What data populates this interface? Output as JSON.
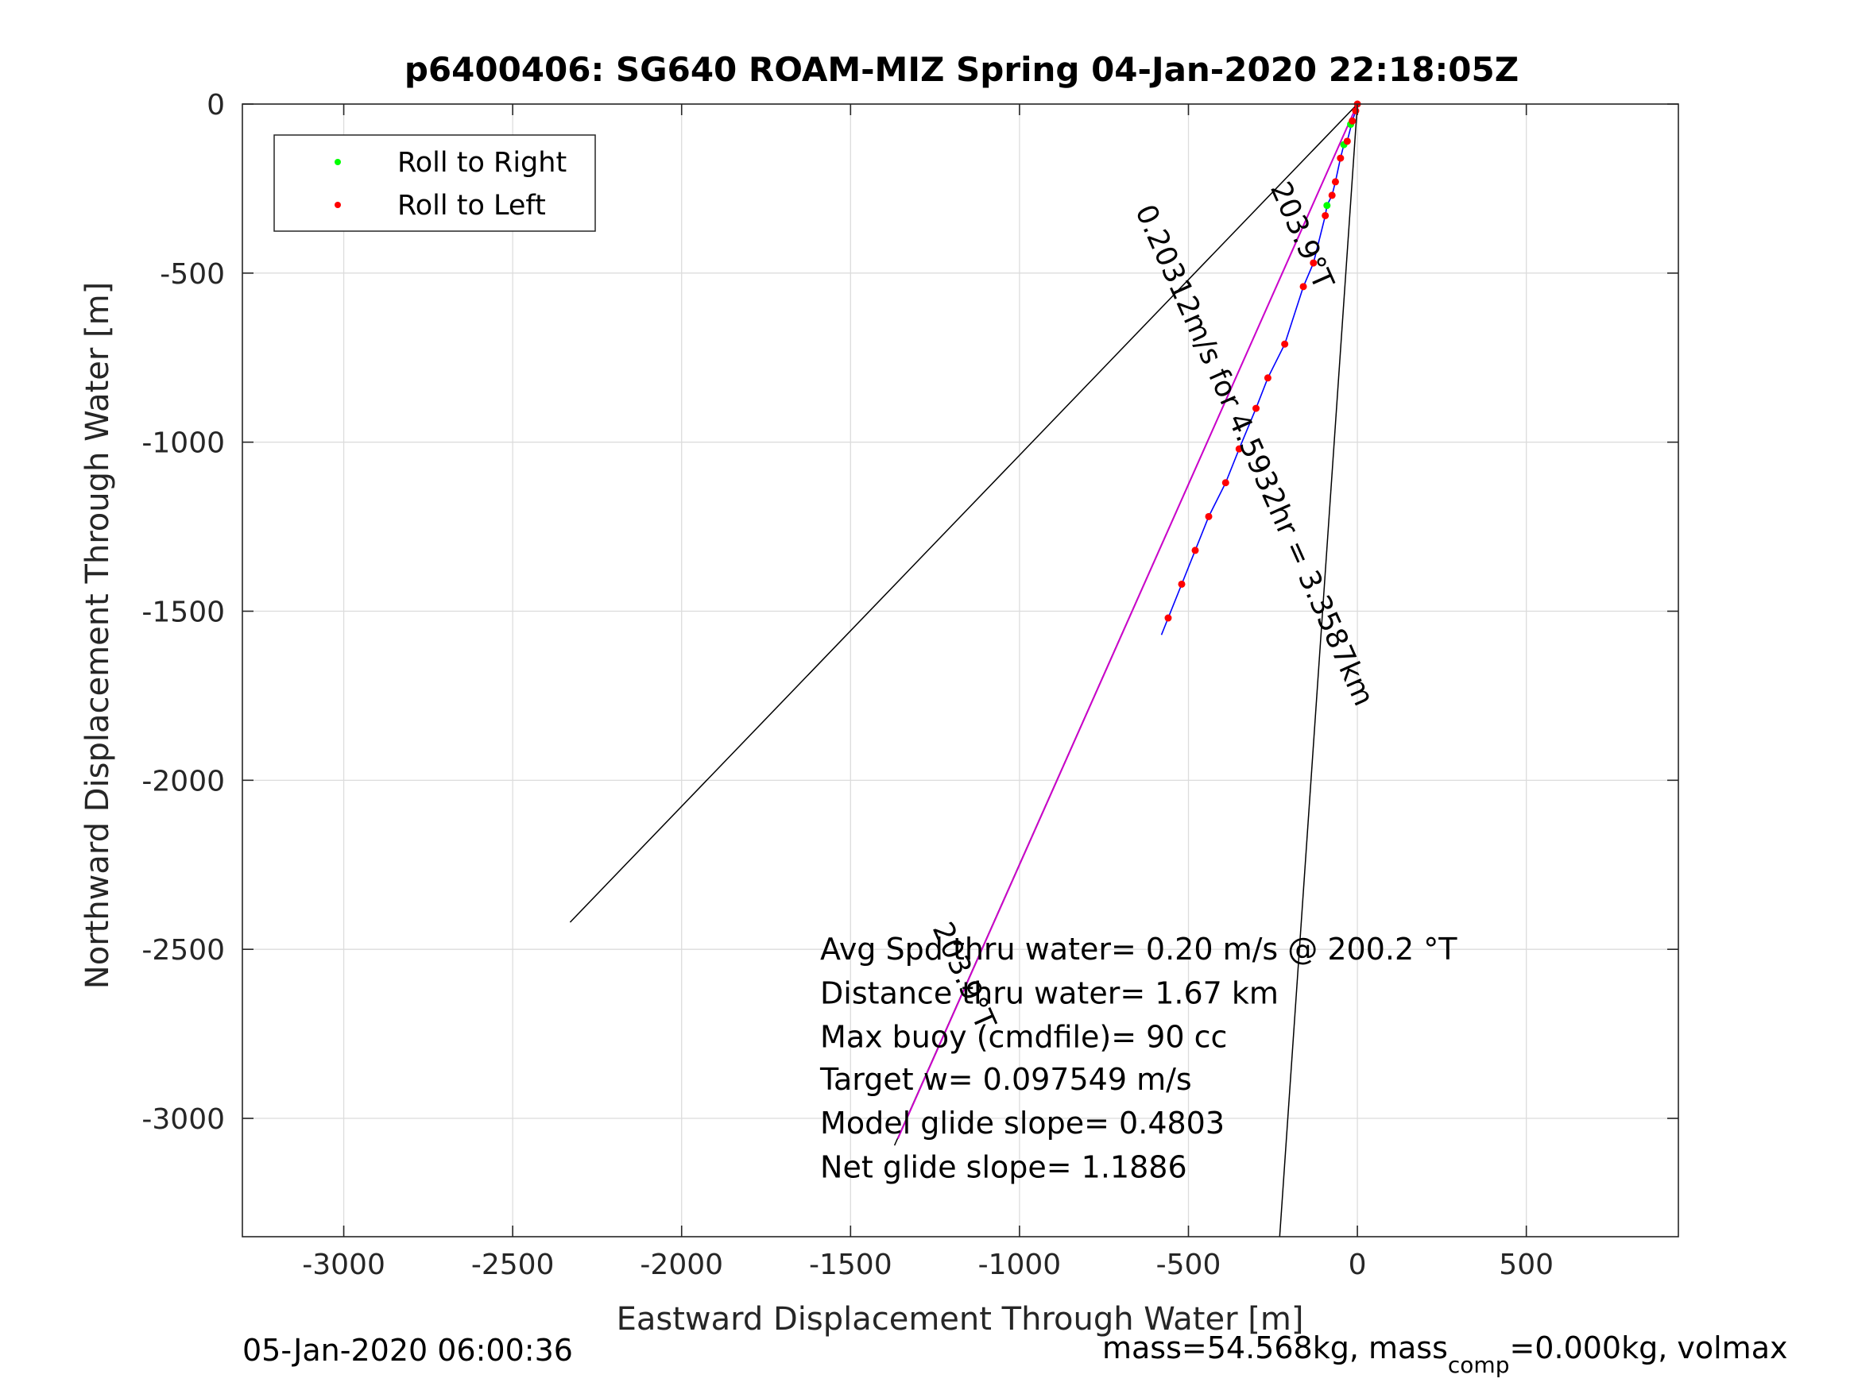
{
  "chart_data": {
    "type": "line",
    "title": "p6400406: SG640 ROAM-MIZ Spring 04-Jan-2020 22:18:05Z",
    "xlabel": "Eastward Displacement Through Water [m]",
    "ylabel": "Northward Displacement Through Water [m]",
    "xlim": [
      -3300,
      950
    ],
    "ylim": [
      -3350,
      0
    ],
    "x_ticks": [
      -3000,
      -2500,
      -2000,
      -1500,
      -1000,
      -500,
      0,
      500
    ],
    "y_ticks": [
      0,
      -500,
      -1000,
      -1500,
      -2000,
      -2500,
      -3000
    ],
    "grid": true,
    "legend_position": "top-left",
    "legend": [
      {
        "label": "Roll to Right",
        "color": "#00ff00"
      },
      {
        "label": "Roll to Left",
        "color": "#ff0000"
      }
    ],
    "series": [
      {
        "name": "Roll to Right",
        "type": "scatter",
        "color": "#00ff00",
        "points": [
          [
            -20,
            -60
          ],
          [
            -40,
            -120
          ],
          [
            -90,
            -300
          ]
        ]
      },
      {
        "name": "Roll to Left",
        "type": "scatter",
        "color": "#ff0000",
        "points": [
          [
            0,
            0
          ],
          [
            -5,
            -20
          ],
          [
            -15,
            -50
          ],
          [
            -30,
            -110
          ],
          [
            -50,
            -160
          ],
          [
            -65,
            -230
          ],
          [
            -75,
            -270
          ],
          [
            -95,
            -330
          ],
          [
            -130,
            -470
          ],
          [
            -160,
            -540
          ],
          [
            -215,
            -710
          ],
          [
            -265,
            -810
          ],
          [
            -300,
            -900
          ],
          [
            -350,
            -1020
          ],
          [
            -390,
            -1120
          ],
          [
            -440,
            -1220
          ],
          [
            -480,
            -1320
          ],
          [
            -520,
            -1420
          ],
          [
            -560,
            -1520
          ]
        ]
      },
      {
        "type": "track",
        "color": "#0000ff",
        "points": [
          [
            0,
            0
          ],
          [
            -5,
            -20
          ],
          [
            -15,
            -50
          ],
          [
            -30,
            -110
          ],
          [
            -40,
            -120
          ],
          [
            -50,
            -160
          ],
          [
            -65,
            -230
          ],
          [
            -75,
            -270
          ],
          [
            -90,
            -300
          ],
          [
            -95,
            -330
          ],
          [
            -130,
            -470
          ],
          [
            -160,
            -540
          ],
          [
            -215,
            -710
          ],
          [
            -265,
            -810
          ],
          [
            -300,
            -900
          ],
          [
            -350,
            -1020
          ],
          [
            -390,
            -1120
          ],
          [
            -440,
            -1220
          ],
          [
            -480,
            -1320
          ],
          [
            -520,
            -1420
          ],
          [
            -560,
            -1520
          ],
          [
            -580,
            -1570
          ]
        ]
      },
      {
        "type": "net-vector",
        "color": "#cc00cc",
        "points": [
          [
            0,
            0
          ],
          [
            -1360,
            -3060
          ]
        ]
      },
      {
        "type": "bound-line",
        "color": "#000000",
        "points": [
          [
            0,
            0
          ],
          [
            -2330,
            -2420
          ]
        ]
      },
      {
        "type": "bound-line",
        "color": "#000000",
        "points": [
          [
            0,
            0
          ],
          [
            -230,
            -3350
          ]
        ]
      },
      {
        "type": "bound-line",
        "color": "#000000",
        "points": [
          [
            0,
            0
          ],
          [
            -1370,
            -3080
          ]
        ]
      }
    ],
    "rotated_labels": [
      {
        "text": "203.9°T",
        "x": -190,
        "y": -400,
        "angle_deg": 66
      },
      {
        "text": "0.20312m/s for 4.5932hr = 3.3587km",
        "x": -330,
        "y": -1050,
        "angle_deg": 66
      },
      {
        "text": "203.9°T",
        "x": -1190,
        "y": -2590,
        "angle_deg": 66
      }
    ],
    "annotations": [
      {
        "text": "Avg Spd thru water=  0.20 m/s @ 200.2 °T",
        "x": -1590,
        "y": -2530
      },
      {
        "text": "Distance thru water=  1.67 km",
        "x": -1590,
        "y": -2660
      },
      {
        "text": "Max buoy (cmdfile)= 90 cc",
        "x": -1590,
        "y": -2790
      },
      {
        "text": "Target w= 0.097549 m/s",
        "x": -1590,
        "y": -2915
      },
      {
        "text": "Model glide slope= 0.4803",
        "x": -1590,
        "y": -3045
      },
      {
        "text": "Net glide slope= 1.1886",
        "x": -1590,
        "y": -3175
      }
    ]
  },
  "footer": {
    "timestamp": "05-Jan-2020 06:00:36",
    "mass_text_1": "mass=54.568kg, mass",
    "mass_subscript": "comp",
    "mass_text_2": "=0.000kg, volmax"
  }
}
